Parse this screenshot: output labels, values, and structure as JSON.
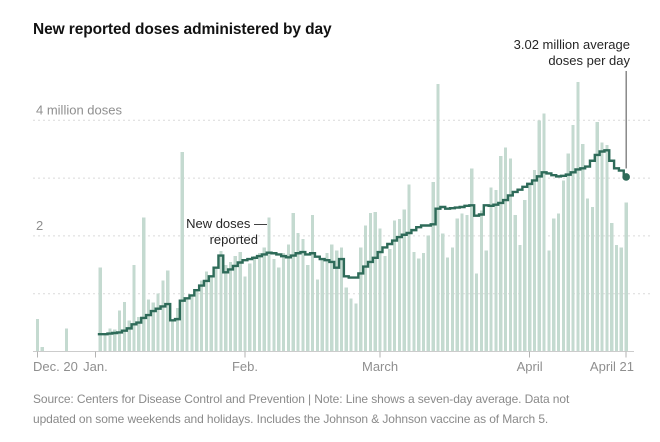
{
  "title": "New reported doses administered by day",
  "annotations": {
    "average": {
      "line1": "3.02 million average",
      "line2": "doses per day"
    },
    "new_doses": {
      "line1": "New doses —",
      "line2": "reported"
    }
  },
  "source": {
    "line1": "Source: Centers for Disease Control and Prevention | Note: Line shows a seven-day average. Data not",
    "line2": "updated on some weekends and holidays. Includes the Johnson & Johnson vaccine as of March 5."
  },
  "colors": {
    "bar": "#c4dad0",
    "line": "#2e6b59",
    "grid": "#dadada",
    "axis": "#cccccc",
    "tick": "#b3b3b3",
    "axis_text": "#8f8f8f",
    "annotation_text": "#262626",
    "connector": "#4d4d4d",
    "title_text": "#121212",
    "source_text": "#8a8a8a"
  },
  "chart_data": {
    "type": "bar",
    "title": "New reported doses administered by day",
    "unit": "million doses per day",
    "ylim": [
      0,
      4.8
    ],
    "grid": "dashed horizontal",
    "gridlines_millions": [
      1,
      2,
      3,
      4
    ],
    "y_tick_labels": {
      "label_4": "4 million doses",
      "label_2": "2"
    },
    "x_tick_labels": [
      {
        "label": "Dec. 20",
        "day_index": 0,
        "anchor": "start"
      },
      {
        "label": "Jan.",
        "day_index": 12,
        "anchor": "middle"
      },
      {
        "label": "Feb.",
        "day_index": 43,
        "anchor": "middle"
      },
      {
        "label": "March",
        "day_index": 71,
        "anchor": "middle"
      },
      {
        "label": "April",
        "day_index": 102,
        "anchor": "middle"
      },
      {
        "label": "April 21",
        "day_index": 122,
        "anchor": "end"
      }
    ],
    "months": [
      {
        "name": "Dec.",
        "from": 20,
        "to": 31
      },
      {
        "name": "Jan.",
        "from": 1,
        "to": 31
      },
      {
        "name": "Feb.",
        "from": 1,
        "to": 28
      },
      {
        "name": "March",
        "from": 1,
        "to": 31
      },
      {
        "name": "April",
        "from": 1,
        "to": 21
      }
    ],
    "bars": {
      "name": "New doses reported",
      "start_day_index": 0,
      "values": [
        0.56,
        0.08,
        0,
        0,
        0,
        0,
        0.4,
        0,
        0,
        0,
        0,
        0,
        0,
        1.45,
        0.3,
        0.4,
        0.38,
        0.71,
        0.86,
        0.54,
        1.5,
        0.6,
        2.32,
        0.9,
        0.85,
        1.0,
        1.23,
        1.4,
        0.55,
        0.75,
        3.45,
        0.9,
        0.95,
        1.05,
        1.23,
        1.38,
        1.28,
        1.43,
        1.74,
        1.5,
        1.55,
        1.65,
        1.72,
        1.3,
        1.52,
        1.65,
        1.7,
        1.8,
        2.32,
        1.6,
        1.45,
        1.7,
        1.85,
        2.4,
        2.05,
        1.95,
        1.5,
        2.36,
        1.25,
        1.6,
        1.7,
        1.85,
        1.75,
        1.8,
        1.11,
        0.92,
        0.83,
        1.8,
        2.18,
        2.4,
        2.41,
        2.13,
        1.65,
        1.77,
        2.27,
        2.29,
        2.46,
        2.89,
        1.72,
        1.61,
        1.7,
        2.01,
        2.93,
        4.63,
        2.04,
        1.63,
        1.8,
        2.3,
        2.39,
        2.36,
        3.17,
        1.35,
        2.44,
        1.75,
        2.84,
        2.79,
        3.38,
        3.53,
        3.34,
        2.36,
        1.84,
        2.62,
        2.91,
        3.14,
        4.0,
        4.12,
        1.75,
        2.3,
        2.39,
        2.96,
        3.43,
        3.92,
        4.66,
        3.59,
        2.65,
        2.5,
        3.97,
        3.62,
        3.57,
        2.22,
        1.84,
        1.8,
        2.58
      ]
    },
    "line": {
      "name": "Seven-day average",
      "end_value": 3.02,
      "end_value_label": "3.02 million average doses per day",
      "start_day_index": 13,
      "values": [
        0.3,
        0.3,
        0.31,
        0.32,
        0.33,
        0.36,
        0.4,
        0.47,
        0.5,
        0.58,
        0.63,
        0.7,
        0.74,
        0.78,
        0.82,
        0.54,
        0.56,
        0.88,
        0.92,
        0.97,
        1.06,
        1.14,
        1.22,
        1.3,
        1.45,
        1.66,
        1.37,
        1.42,
        1.48,
        1.54,
        1.58,
        1.6,
        1.62,
        1.65,
        1.68,
        1.71,
        1.7,
        1.68,
        1.65,
        1.63,
        1.66,
        1.7,
        1.72,
        1.68,
        1.7,
        1.64,
        1.6,
        1.58,
        1.55,
        1.45,
        1.6,
        1.3,
        1.28,
        1.28,
        1.35,
        1.47,
        1.55,
        1.62,
        1.72,
        1.8,
        1.86,
        1.92,
        1.98,
        2.02,
        2.05,
        2.1,
        2.15,
        2.18,
        2.18,
        2.2,
        2.47,
        2.5,
        2.47,
        2.48,
        2.49,
        2.5,
        2.52,
        2.53,
        2.35,
        2.37,
        2.53,
        2.52,
        2.54,
        2.57,
        2.62,
        2.7,
        2.76,
        2.8,
        2.85,
        2.9,
        2.96,
        3.03,
        3.1,
        3.08,
        3.05,
        3.03,
        3.04,
        3.06,
        3.1,
        3.15,
        3.17,
        3.2,
        3.3,
        3.4,
        3.46,
        3.48,
        3.3,
        3.17,
        3.13,
        3.02
      ]
    }
  }
}
